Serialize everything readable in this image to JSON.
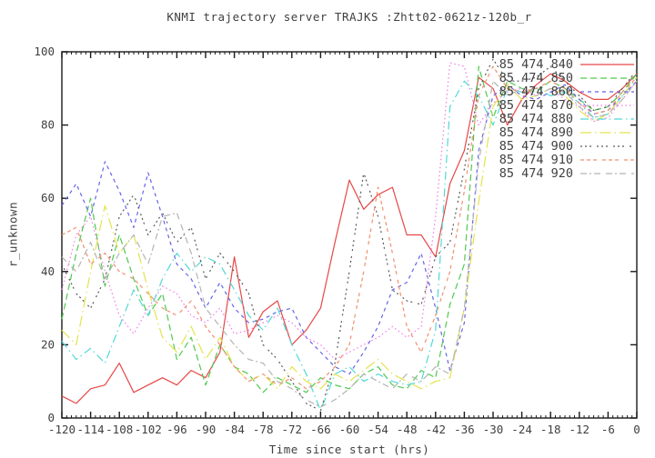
{
  "title": "KNMI trajectory server TRAJKS :Zhtt02-0621z-120b_r",
  "chart_data": {
    "type": "line",
    "title": "KNMI trajectory server TRAJKS :Zhtt02-0621z-120b_r",
    "xlabel": "Time since start (hrs)",
    "ylabel": "r_unknown",
    "xlim": [
      -120,
      0
    ],
    "ylim": [
      0,
      100
    ],
    "x_major_ticks": [
      -120,
      -114,
      -108,
      -102,
      -96,
      -90,
      -84,
      -78,
      -72,
      -66,
      -60,
      -54,
      -48,
      -42,
      -36,
      -30,
      -24,
      -18,
      -12,
      -6,
      0
    ],
    "x_minor_step": 1,
    "y_major_ticks": [
      0,
      20,
      40,
      60,
      80,
      100
    ],
    "grid": false,
    "legend_position": "top-right-inside",
    "axis_color": "#1a1a1a",
    "text_color": "#404040",
    "x": [
      -120,
      -117,
      -114,
      -111,
      -108,
      -105,
      -102,
      -99,
      -96,
      -93,
      -90,
      -87,
      -84,
      -81,
      -78,
      -75,
      -72,
      -69,
      -66,
      -63,
      -60,
      -57,
      -54,
      -51,
      -48,
      -45,
      -42,
      -39,
      -36,
      -33,
      -30,
      -27,
      -24,
      -21,
      -18,
      -15,
      -12,
      -9,
      -6,
      -3,
      0
    ],
    "series": [
      {
        "label": "85 474 840",
        "color": "#e64747",
        "dash": "",
        "values": [
          6,
          4,
          8,
          9,
          15,
          7,
          9,
          11,
          9,
          13,
          11,
          18,
          44,
          22,
          29,
          32,
          20,
          24,
          30,
          48,
          65,
          57,
          61,
          63,
          50,
          50,
          44,
          64,
          73,
          93,
          90,
          80,
          87,
          91,
          94,
          92,
          89,
          87,
          87,
          90,
          94
        ]
      },
      {
        "label": "85 474 850",
        "color": "#4fc94f",
        "dash": "7,4",
        "values": [
          27,
          45,
          60,
          36,
          50,
          38,
          28,
          34,
          16,
          22,
          9,
          20,
          14,
          12,
          7,
          11,
          9,
          7,
          11,
          9,
          8,
          12,
          14,
          9,
          8,
          13,
          11,
          31,
          42,
          96,
          82,
          92,
          90,
          89,
          92,
          90,
          87,
          84,
          85,
          89,
          94
        ]
      },
      {
        "label": "85 474 860",
        "color": "#6565e8",
        "dash": "4,4",
        "values": [
          58,
          64,
          55,
          70,
          62,
          52,
          67,
          55,
          42,
          38,
          30,
          37,
          30,
          26,
          27,
          29,
          30,
          22,
          18,
          14,
          12,
          18,
          25,
          35,
          37,
          45,
          30,
          13,
          26,
          73,
          88,
          91,
          88,
          87,
          89,
          91,
          87,
          83,
          84,
          88,
          92
        ]
      },
      {
        "label": "85 474 870",
        "color": "#f07ae8",
        "dash": "1.5,3",
        "values": [
          35,
          50,
          55,
          40,
          28,
          23,
          30,
          36,
          34,
          28,
          26,
          30,
          23,
          24,
          26,
          28,
          26,
          22,
          20,
          16,
          18,
          20,
          22,
          25,
          22,
          25,
          55,
          97,
          96,
          80,
          86,
          89,
          90,
          88,
          90,
          87,
          85,
          81,
          82,
          87,
          92
        ]
      },
      {
        "label": "85 474 880",
        "color": "#52d8d8",
        "dash": "9,4,1.5,4",
        "values": [
          21,
          16,
          19,
          15,
          25,
          35,
          28,
          38,
          45,
          40,
          44,
          42,
          35,
          28,
          24,
          30,
          20,
          12,
          2,
          12,
          14,
          10,
          12,
          10,
          9,
          10,
          24,
          85,
          92,
          88,
          80,
          90,
          89,
          90,
          88,
          89,
          86,
          82,
          83,
          88,
          93
        ]
      },
      {
        "label": "85 474 890",
        "color": "#e3e34e",
        "dash": "12,4,1.5,4",
        "values": [
          24,
          20,
          40,
          58,
          45,
          50,
          35,
          22,
          18,
          25,
          16,
          22,
          14,
          10,
          12,
          8,
          14,
          10,
          8,
          12,
          10,
          13,
          16,
          12,
          10,
          8,
          10,
          11,
          30,
          59,
          85,
          91,
          87,
          88,
          90,
          88,
          84,
          81,
          83,
          88,
          93
        ]
      },
      {
        "label": "85 474 900",
        "color": "#5a5a5a",
        "dash": "2,3,2,3,2,6",
        "values": [
          42,
          34,
          30,
          38,
          55,
          61,
          50,
          56,
          48,
          52,
          38,
          45,
          40,
          34,
          20,
          16,
          10,
          4,
          2,
          15,
          40,
          67,
          55,
          35,
          32,
          31,
          44,
          48,
          68,
          90,
          98,
          92,
          92,
          93,
          96,
          92,
          88,
          84,
          85,
          90,
          95
        ]
      },
      {
        "label": "85 474 910",
        "color": "#f0916e",
        "dash": "4,3,4,3,4,6",
        "values": [
          50,
          52,
          42,
          45,
          40,
          38,
          34,
          30,
          28,
          32,
          25,
          20,
          14,
          10,
          12,
          9,
          11,
          8,
          10,
          14,
          20,
          40,
          63,
          45,
          25,
          18,
          28,
          40,
          62,
          88,
          96,
          90,
          89,
          90,
          92,
          90,
          86,
          83,
          84,
          89,
          93
        ]
      },
      {
        "label": "85 474 920",
        "color": "#b4b4b4",
        "dash": "7,3,2,3,7,6",
        "values": [
          44,
          40,
          48,
          38,
          45,
          50,
          42,
          55,
          56,
          45,
          30,
          25,
          20,
          16,
          15,
          10,
          8,
          5,
          3,
          5,
          8,
          12,
          10,
          8,
          12,
          10,
          14,
          12,
          30,
          70,
          92,
          88,
          90,
          88,
          90,
          89,
          85,
          82,
          83,
          87,
          92
        ]
      }
    ]
  }
}
